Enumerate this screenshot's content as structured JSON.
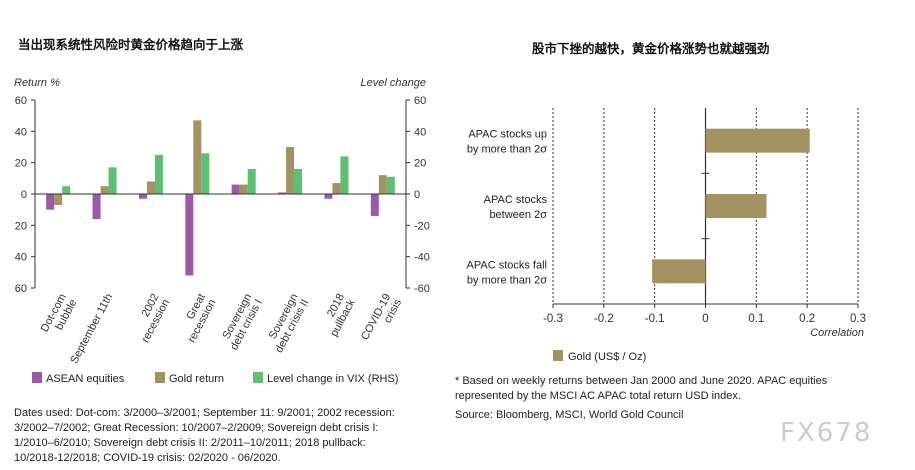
{
  "chart_data": [
    {
      "type": "bar",
      "title": "当出现系统性风险时黄金价格趋向于上涨",
      "ylabel": "Return %",
      "y2label": "Level change",
      "ylim": [
        -60,
        60
      ],
      "y2lim": [
        -60,
        60
      ],
      "yticks": [
        "60",
        "40",
        "20",
        "0",
        "20",
        "40",
        "60"
      ],
      "y2ticks": [
        "60",
        "40",
        "20",
        "0",
        "-20",
        "-40",
        "-60"
      ],
      "categories": [
        "Dot-com bubble",
        "September 11th",
        "2002 recession",
        "Great recession",
        "Sovereign debt crisis I",
        "Sovereign debt crisis II",
        "2018 pullback",
        "COVID-19 crisis"
      ],
      "series": [
        {
          "name": "ASEAN equities",
          "color": "#9a5aa8",
          "values": [
            -10,
            -16,
            -3,
            -52,
            6,
            1,
            -3,
            -14
          ]
        },
        {
          "name": "Gold return",
          "color": "#a39362",
          "values": [
            -7,
            5,
            8,
            47,
            6,
            30,
            7,
            12
          ]
        },
        {
          "name": "Level change in VIX (RHS)",
          "color": "#5cbf71",
          "values": [
            5,
            17,
            25,
            26,
            16,
            16,
            24,
            11
          ]
        }
      ],
      "legend": "bottom",
      "grid": false
    },
    {
      "type": "bar",
      "orientation": "horizontal",
      "title": "股市下挫的越快，黄金价格涨势也就越强劲",
      "xlabel": "Correlation",
      "xlim": [
        -0.3,
        0.3
      ],
      "xticks": [
        "-0.3",
        "-0.2",
        "-0.1",
        "0",
        "0.1",
        "0.2",
        "0.3"
      ],
      "categories": [
        "APAC stocks up|by more than 2σ",
        "APAC stocks|between 2σ",
        "APAC stocks fall|by more than 2σ"
      ],
      "series": [
        {
          "name": "Gold (US$ / Oz)",
          "color": "#a39362",
          "values": [
            0.205,
            0.12,
            -0.105
          ]
        }
      ],
      "grid": true,
      "legend": "bottom-left"
    }
  ],
  "notes": {
    "left": "Dates used: Dot-com: 3/2000–3/2001; September 11: 9/2001; 2002 recession: 3/2002–7/2002; Great Recession: 10/2007–2/2009; Sovereign debt crisis I: 1/2010–6/2010; Sovereign debt crisis II: 2/2011–10/2011; 2018 pullback: 10/2018-12/2018; COVID-19 crisis: 02/2020 - 06/2020.",
    "right": "* Based on weekly returns between Jan 2000 and June 2020. APAC equities represented by the MSCI AC APAC total return USD index.",
    "source": "Source: Bloomberg, MSCI, World Gold Council"
  },
  "watermark": "FX678"
}
